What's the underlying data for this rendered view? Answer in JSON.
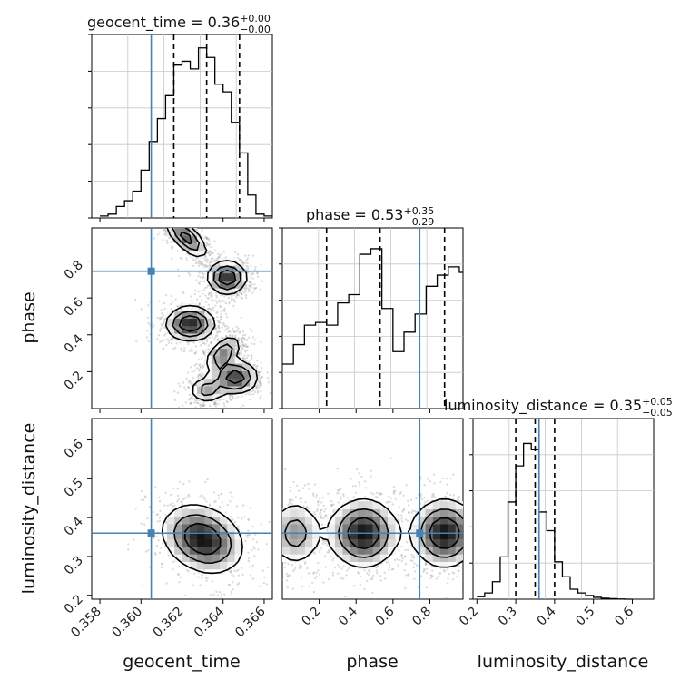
{
  "chart_data": {
    "type": "corner",
    "parameters": [
      "geocent_time",
      "phase",
      "luminosity_distance"
    ],
    "truth_color": "#4682b4",
    "hist_color": "#000000",
    "ranges": {
      "geocent_time": [
        0.3576,
        0.3664
      ],
      "phase": [
        0.0,
        0.98
      ],
      "luminosity_distance": [
        0.19,
        0.655
      ]
    },
    "truths": {
      "geocent_time": 0.3605,
      "phase": 0.745,
      "luminosity_distance": 0.36
    },
    "titles": [
      {
        "name": "geocent_time",
        "value": "0.36",
        "plus": "+0.00",
        "minus": "−0.00"
      },
      {
        "name": "phase",
        "value": "0.53",
        "plus": "+0.35",
        "minus": "−0.29"
      },
      {
        "name": "luminosity_distance",
        "value": "0.35",
        "plus": "+0.05",
        "minus": "−0.05"
      }
    ],
    "axis_labels": {
      "x": [
        "geocent_time",
        "phase",
        "luminosity_distance"
      ],
      "y": [
        "phase",
        "luminosity_distance"
      ]
    },
    "ticks": {
      "geocent_time": [
        "0.358",
        "0.360",
        "0.362",
        "0.364",
        "0.366"
      ],
      "phase_x": [
        "0.2",
        "0.4",
        "0.6",
        "0.8"
      ],
      "phase_y": [
        "0.2",
        "0.4",
        "0.6",
        "0.8"
      ],
      "luminosity_distance_x": [
        "0.2",
        "0.3",
        "0.4",
        "0.5",
        "0.6"
      ],
      "luminosity_distance_y": [
        "0.2",
        "0.3",
        "0.4",
        "0.5",
        "0.6"
      ]
    },
    "quantiles": {
      "geocent_time": [
        0.3616,
        0.3632,
        0.3648
      ],
      "phase": [
        0.24,
        0.53,
        0.88
      ],
      "luminosity_distance": [
        0.3,
        0.35,
        0.4
      ]
    },
    "histograms": {
      "geocent_time": {
        "edges": [
          0.358,
          0.3584,
          0.3588,
          0.3592,
          0.3596,
          0.36,
          0.3604,
          0.3608,
          0.3612,
          0.3616,
          0.362,
          0.3624,
          0.3628,
          0.3632,
          0.3636,
          0.364,
          0.3644,
          0.3648,
          0.3652,
          0.3656,
          0.366,
          0.3664
        ],
        "counts": [
          0.01,
          0.02,
          0.06,
          0.09,
          0.14,
          0.25,
          0.4,
          0.52,
          0.64,
          0.8,
          0.82,
          0.78,
          0.89,
          0.84,
          0.7,
          0.66,
          0.5,
          0.34,
          0.12,
          0.02,
          0.01
        ],
        "ymax": 0.96
      },
      "phase": {
        "edges": [
          0.0,
          0.06,
          0.12,
          0.18,
          0.24,
          0.3,
          0.36,
          0.42,
          0.48,
          0.54,
          0.6,
          0.66,
          0.72,
          0.78,
          0.84,
          0.9,
          0.96,
          0.98
        ],
        "counts": [
          0.32,
          0.46,
          0.6,
          0.62,
          0.6,
          0.76,
          0.82,
          1.11,
          1.15,
          0.72,
          0.41,
          0.55,
          0.68,
          0.88,
          0.96,
          1.02,
          0.98
        ],
        "ymax": 1.3
      },
      "luminosity_distance": {
        "edges": [
          0.2,
          0.22,
          0.24,
          0.26,
          0.28,
          0.3,
          0.32,
          0.34,
          0.36,
          0.38,
          0.4,
          0.42,
          0.44,
          0.46,
          0.48,
          0.5,
          0.52,
          0.54,
          0.56,
          0.58,
          0.6
        ],
        "counts": [
          0.02,
          0.05,
          0.14,
          0.34,
          0.78,
          1.07,
          1.25,
          1.2,
          0.7,
          0.55,
          0.3,
          0.18,
          0.08,
          0.05,
          0.03,
          0.015,
          0.008,
          0.004,
          0.002,
          0.0
        ],
        "ymax": 1.45
      }
    },
    "contours": {
      "phase_vs_geocent_time": [
        {
          "mean": [
            0.3622,
            0.93
          ],
          "cov": [
            [
              3e-07,
              -2.4e-05
            ],
            [
              -2.4e-05,
              0.0036
            ]
          ],
          "w": 0.85
        },
        {
          "mean": [
            0.3642,
            0.71
          ],
          "cov": [
            [
              2.5e-07,
              0.0
            ],
            [
              0.0,
              0.0022
            ]
          ],
          "w": 1.0
        },
        {
          "mean": [
            0.3624,
            0.46
          ],
          "cov": [
            [
              4e-07,
              0.0
            ],
            [
              0.0,
              0.0025
            ]
          ],
          "w": 1.0
        },
        {
          "mean": [
            0.364,
            0.3
          ],
          "cov": [
            [
              2e-07,
              1.2e-05
            ],
            [
              1.2e-05,
              0.0024
            ]
          ],
          "w": 0.7
        },
        {
          "mean": [
            0.3646,
            0.17
          ],
          "cov": [
            [
              3.5e-07,
              0.0
            ],
            [
              0.0,
              0.0024
            ]
          ],
          "w": 0.9
        },
        {
          "mean": [
            0.3632,
            0.1
          ],
          "cov": [
            [
              2e-07,
              0.0
            ],
            [
              0.0,
              0.0015
            ]
          ],
          "w": 0.55
        }
      ],
      "luminosity_distance_vs_geocent_time": [
        {
          "mean": [
            0.363,
            0.345
          ],
          "cov": [
            [
              1.1e-06,
              -1.2e-05
            ],
            [
              -1.2e-05,
              0.0022
            ]
          ],
          "w": 1.0
        }
      ],
      "luminosity_distance_vs_phase": [
        {
          "mean": [
            0.07,
            0.36
          ],
          "cov": [
            [
              0.006,
              0.0
            ],
            [
              0.0,
              0.0022
            ]
          ],
          "w": 0.55
        },
        {
          "mean": [
            0.44,
            0.36
          ],
          "cov": [
            [
              0.01,
              0.0
            ],
            [
              0.0,
              0.0022
            ]
          ],
          "w": 1.0
        },
        {
          "mean": [
            0.88,
            0.36
          ],
          "cov": [
            [
              0.009,
              0.0
            ],
            [
              0.0,
              0.0022
            ]
          ],
          "w": 1.0
        }
      ]
    }
  }
}
